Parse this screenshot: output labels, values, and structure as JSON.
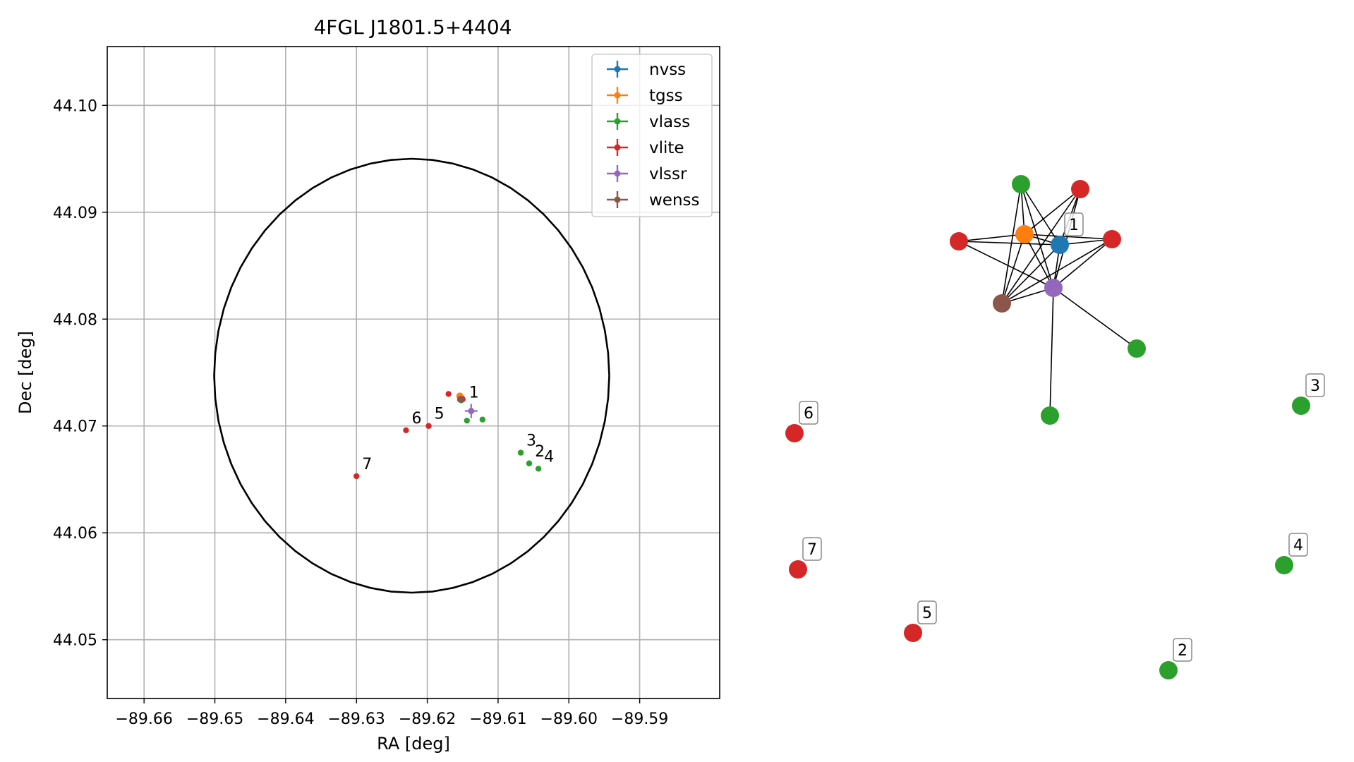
{
  "chart_data": [
    {
      "type": "scatter",
      "title": "4FGL J1801.5+4404",
      "xlabel": "RA [deg]",
      "ylabel": "Dec [deg]",
      "xlim": [
        -89.6652,
        -89.5787
      ],
      "ylim": [
        44.0445,
        44.1055
      ],
      "xticks": [
        -89.66,
        -89.65,
        -89.64,
        -89.63,
        -89.62,
        -89.61,
        -89.6,
        -89.59
      ],
      "xtick_labels": [
        "−89.66",
        "−89.65",
        "−89.64",
        "−89.63",
        "−89.62",
        "−89.61",
        "−89.60",
        "−89.59"
      ],
      "yticks": [
        44.05,
        44.06,
        44.07,
        44.08,
        44.09,
        44.1
      ],
      "ytick_labels": [
        "44.05",
        "44.06",
        "44.07",
        "44.08",
        "44.09",
        "44.10"
      ],
      "grid": true,
      "legend_position": "top-right",
      "ellipse": {
        "center": [
          -89.6222,
          44.0747
        ],
        "semi_axis_ra": 0.0279,
        "semi_axis_dec": 0.0203,
        "color": "#000000"
      },
      "series": [
        {
          "name": "nvss",
          "color": "#1f77b4",
          "points": [
            {
              "x": -89.6152,
              "y": 44.0726
            }
          ]
        },
        {
          "name": "tgss",
          "color": "#ff7f0e",
          "points": [
            {
              "x": -89.6154,
              "y": 44.0728
            }
          ]
        },
        {
          "name": "vlass",
          "color": "#2ca02c",
          "points": [
            {
              "x": -89.6152,
              "y": 44.0724
            },
            {
              "x": -89.6144,
              "y": 44.0705
            },
            {
              "x": -89.6122,
              "y": 44.0706
            },
            {
              "x": -89.6068,
              "y": 44.0675,
              "label": "3"
            },
            {
              "x": -89.6056,
              "y": 44.0665,
              "label": "2"
            },
            {
              "x": -89.6043,
              "y": 44.066,
              "label": "4"
            }
          ]
        },
        {
          "name": "vlite",
          "color": "#d62728",
          "points": [
            {
              "x": -89.617,
              "y": 44.073
            },
            {
              "x": -89.615,
              "y": 44.0725
            },
            {
              "x": -89.6198,
              "y": 44.07,
              "label": "5"
            },
            {
              "x": -89.623,
              "y": 44.0696,
              "label": "6"
            },
            {
              "x": -89.63,
              "y": 44.0653,
              "label": "7"
            }
          ]
        },
        {
          "name": "vlssr",
          "color": "#9467bd",
          "points": [
            {
              "x": -89.6138,
              "y": 44.0714
            }
          ]
        },
        {
          "name": "wenss",
          "color": "#8c564b",
          "points": [
            {
              "x": -89.6153,
              "y": 44.0725
            }
          ]
        }
      ],
      "annotations": [
        {
          "text": "1",
          "x": -89.6138,
          "y": 44.0714
        }
      ]
    },
    {
      "type": "network",
      "node_labels": [
        "1",
        "2",
        "3",
        "4",
        "5",
        "6",
        "7"
      ],
      "nodes": [
        {
          "id": "n_nvss",
          "series": "nvss",
          "color": "#1f77b4",
          "label": "1"
        },
        {
          "id": "n_tgss",
          "series": "tgss",
          "color": "#ff7f0e"
        },
        {
          "id": "n_vlssr",
          "series": "vlssr",
          "color": "#9467bd"
        },
        {
          "id": "n_wenss",
          "series": "wenss",
          "color": "#8c564b"
        },
        {
          "id": "g_top",
          "series": "vlass",
          "color": "#2ca02c"
        },
        {
          "id": "r_topright",
          "series": "vlite",
          "color": "#d62728"
        },
        {
          "id": "r_left",
          "series": "vlite",
          "color": "#d62728"
        },
        {
          "id": "r_right",
          "series": "vlite",
          "color": "#d62728"
        },
        {
          "id": "g_right",
          "series": "vlass",
          "color": "#2ca02c"
        },
        {
          "id": "g_bottom",
          "series": "vlass",
          "color": "#2ca02c"
        },
        {
          "id": "g3",
          "series": "vlass",
          "color": "#2ca02c",
          "label": "3"
        },
        {
          "id": "r6",
          "series": "vlite",
          "color": "#d62728",
          "label": "6"
        },
        {
          "id": "r7",
          "series": "vlite",
          "color": "#d62728",
          "label": "7"
        },
        {
          "id": "g4",
          "series": "vlass",
          "color": "#2ca02c",
          "label": "4"
        },
        {
          "id": "r5",
          "series": "vlite",
          "color": "#d62728",
          "label": "5"
        },
        {
          "id": "g2",
          "series": "vlass",
          "color": "#2ca02c",
          "label": "2"
        }
      ],
      "edges": [
        [
          "g_top",
          "n_tgss"
        ],
        [
          "g_top",
          "n_nvss"
        ],
        [
          "g_top",
          "n_vlssr"
        ],
        [
          "g_top",
          "n_wenss"
        ],
        [
          "r_topright",
          "n_tgss"
        ],
        [
          "r_topright",
          "n_nvss"
        ],
        [
          "r_topright",
          "n_vlssr"
        ],
        [
          "r_topright",
          "n_wenss"
        ],
        [
          "r_left",
          "n_tgss"
        ],
        [
          "r_left",
          "n_nvss"
        ],
        [
          "r_left",
          "n_vlssr"
        ],
        [
          "r_right",
          "n_tgss"
        ],
        [
          "r_right",
          "n_nvss"
        ],
        [
          "r_right",
          "n_vlssr"
        ],
        [
          "r_right",
          "n_wenss"
        ],
        [
          "n_tgss",
          "n_nvss"
        ],
        [
          "n_tgss",
          "n_vlssr"
        ],
        [
          "n_tgss",
          "n_wenss"
        ],
        [
          "n_nvss",
          "n_vlssr"
        ],
        [
          "n_nvss",
          "n_wenss"
        ],
        [
          "n_vlssr",
          "n_wenss"
        ],
        [
          "n_vlssr",
          "g_right"
        ],
        [
          "n_vlssr",
          "g_bottom"
        ]
      ]
    }
  ]
}
